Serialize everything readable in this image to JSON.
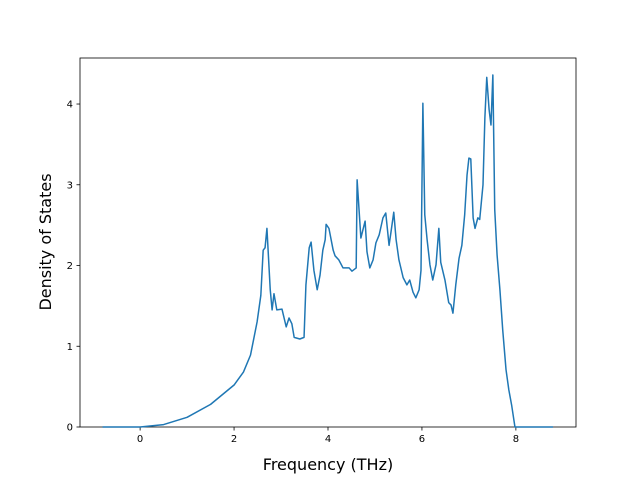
{
  "chart_data": {
    "type": "line",
    "xlabel": "Frequency (THz)",
    "ylabel": "Density of States",
    "x": [
      -0.8,
      0,
      0.5,
      1,
      1.5,
      2,
      2.2,
      2.35,
      2.49,
      2.57,
      2.62,
      2.66,
      2.7,
      2.77,
      2.81,
      2.85,
      2.91,
      3.02,
      3.11,
      3.17,
      3.23,
      3.28,
      3.4,
      3.49,
      3.53,
      3.6,
      3.64,
      3.7,
      3.77,
      3.83,
      3.89,
      3.94,
      3.96,
      4.02,
      4.11,
      4.15,
      4.23,
      4.32,
      4.45,
      4.51,
      4.6,
      4.62,
      4.7,
      4.79,
      4.83,
      4.89,
      4.96,
      5.02,
      5.09,
      5.17,
      5.23,
      5.3,
      5.34,
      5.4,
      5.45,
      5.51,
      5.6,
      5.68,
      5.74,
      5.81,
      5.87,
      5.94,
      5.98,
      6.02,
      6.06,
      6.11,
      6.17,
      6.23,
      6.3,
      6.36,
      6.4,
      6.49,
      6.57,
      6.62,
      6.66,
      6.72,
      6.79,
      6.85,
      6.91,
      6.96,
      7.0,
      7.04,
      7.09,
      7.13,
      7.19,
      7.23,
      7.3,
      7.34,
      7.38,
      7.43,
      7.47,
      7.51,
      7.55,
      7.6,
      7.66,
      7.72,
      7.79,
      7.85,
      7.91,
      7.98,
      8.06,
      8.79
    ],
    "values": [
      0,
      0,
      0.03,
      0.12,
      0.28,
      0.52,
      0.68,
      0.89,
      1.3,
      1.63,
      2.19,
      2.22,
      2.46,
      1.7,
      1.45,
      1.65,
      1.45,
      1.46,
      1.24,
      1.35,
      1.28,
      1.11,
      1.09,
      1.11,
      1.76,
      2.22,
      2.29,
      1.94,
      1.7,
      1.88,
      2.19,
      2.32,
      2.51,
      2.46,
      2.19,
      2.12,
      2.07,
      1.97,
      1.97,
      1.93,
      1.97,
      3.06,
      2.34,
      2.55,
      2.17,
      1.97,
      2.07,
      2.28,
      2.38,
      2.59,
      2.65,
      2.25,
      2.41,
      2.66,
      2.32,
      2.07,
      1.85,
      1.76,
      1.82,
      1.67,
      1.6,
      1.7,
      1.94,
      4.01,
      2.63,
      2.32,
      2.01,
      1.82,
      2.01,
      2.46,
      2.04,
      1.82,
      1.54,
      1.51,
      1.41,
      1.76,
      2.09,
      2.25,
      2.63,
      3.12,
      3.33,
      3.32,
      2.59,
      2.46,
      2.59,
      2.57,
      3.0,
      3.83,
      4.33,
      3.93,
      3.74,
      4.36,
      2.69,
      2.13,
      1.7,
      1.2,
      0.71,
      0.46,
      0.27,
      0,
      0,
      0
    ],
    "color": "#1f77b4",
    "xlim": [
      -1.28,
      9.28
    ],
    "xticks": [
      0,
      2,
      4,
      6,
      8
    ],
    "ylim": [
      0,
      4.57
    ],
    "yticks": [
      0,
      1,
      2,
      3,
      4
    ]
  }
}
